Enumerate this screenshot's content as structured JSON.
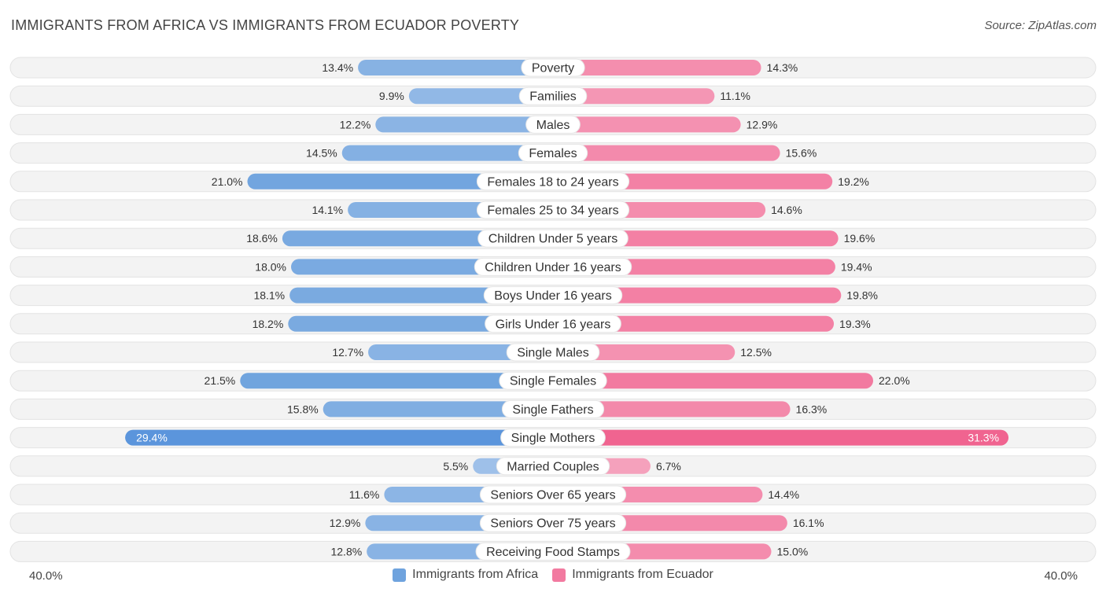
{
  "header": {
    "title": "IMMIGRANTS FROM AFRICA VS IMMIGRANTS FROM ECUADOR POVERTY",
    "source": "Source: ZipAtlas.com"
  },
  "axis": {
    "left_label": "40.0%",
    "right_label": "40.0%"
  },
  "legend": {
    "africa_label": "Immigrants from Africa",
    "ecuador_label": "Immigrants from Ecuador"
  },
  "colors": {
    "africa": "#6fa3de",
    "africa_light": "#adc9ec",
    "ecuador": "#f27aa0",
    "ecuador_light": "#f7b2c8",
    "track": "#f2f2f2"
  },
  "chart_data": {
    "type": "bar",
    "orientation": "horizontal-diverging",
    "title": "IMMIGRANTS FROM AFRICA VS IMMIGRANTS FROM ECUADOR POVERTY",
    "xlim": [
      -40,
      40
    ],
    "categories": [
      "Poverty",
      "Families",
      "Males",
      "Females",
      "Females 18 to 24 years",
      "Females 25 to 34 years",
      "Children Under 5 years",
      "Children Under 16 years",
      "Boys Under 16 years",
      "Girls Under 16 years",
      "Single Males",
      "Single Females",
      "Single Fathers",
      "Single Mothers",
      "Married Couples",
      "Seniors Over 65 years",
      "Seniors Over 75 years",
      "Receiving Food Stamps"
    ],
    "series": [
      {
        "name": "Immigrants from Africa",
        "values": [
          13.4,
          9.9,
          12.2,
          14.5,
          21.0,
          14.1,
          18.6,
          18.0,
          18.1,
          18.2,
          12.7,
          21.5,
          15.8,
          29.4,
          5.5,
          11.6,
          12.9,
          12.8
        ],
        "labels": [
          "13.4%",
          "9.9%",
          "12.2%",
          "14.5%",
          "21.0%",
          "14.1%",
          "18.6%",
          "18.0%",
          "18.1%",
          "18.2%",
          "12.7%",
          "21.5%",
          "15.8%",
          "29.4%",
          "5.5%",
          "11.6%",
          "12.9%",
          "12.8%"
        ]
      },
      {
        "name": "Immigrants from Ecuador",
        "values": [
          14.3,
          11.1,
          12.9,
          15.6,
          19.2,
          14.6,
          19.6,
          19.4,
          19.8,
          19.3,
          12.5,
          22.0,
          16.3,
          31.3,
          6.7,
          14.4,
          16.1,
          15.0
        ],
        "labels": [
          "14.3%",
          "11.1%",
          "12.9%",
          "15.6%",
          "19.2%",
          "14.6%",
          "19.6%",
          "19.4%",
          "19.8%",
          "19.3%",
          "12.5%",
          "22.0%",
          "16.3%",
          "31.3%",
          "6.7%",
          "14.4%",
          "16.1%",
          "15.0%"
        ]
      }
    ]
  }
}
